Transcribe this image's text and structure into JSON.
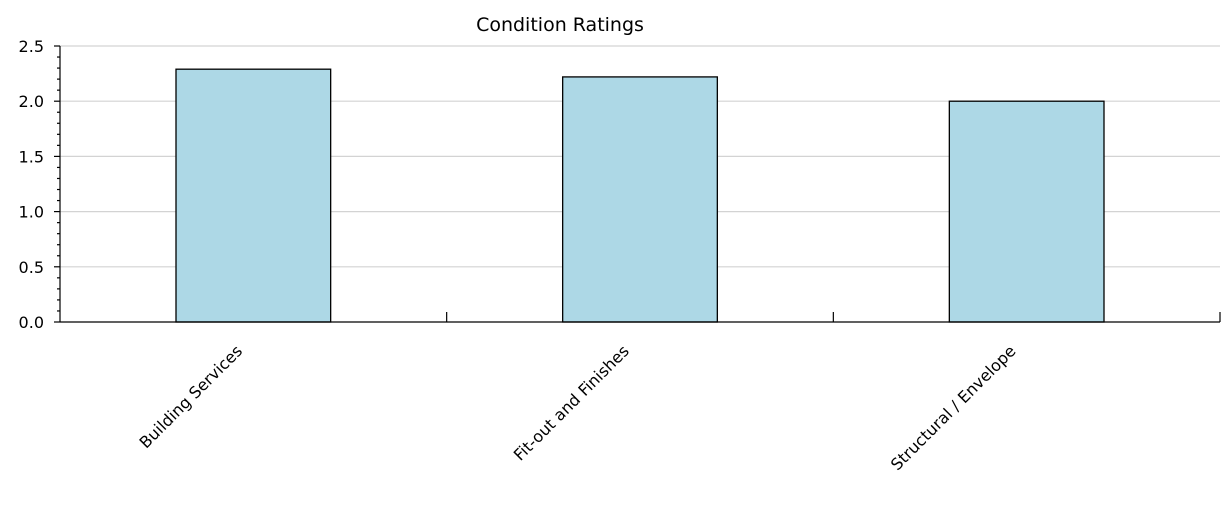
{
  "chart_data": {
    "type": "bar",
    "title": "Condition Ratings",
    "categories": [
      "Building Services",
      "Fit-out and Finishes",
      "Structural / Envelope"
    ],
    "values": [
      2.29,
      2.22,
      2.0
    ],
    "ylim": [
      0,
      2.5
    ],
    "yticks": [
      "0.0",
      "0.5",
      "1.0",
      "1.5",
      "2.0",
      "2.5"
    ],
    "xlabel": "",
    "ylabel": "",
    "grid": true,
    "bar_color": "#add8e6"
  }
}
